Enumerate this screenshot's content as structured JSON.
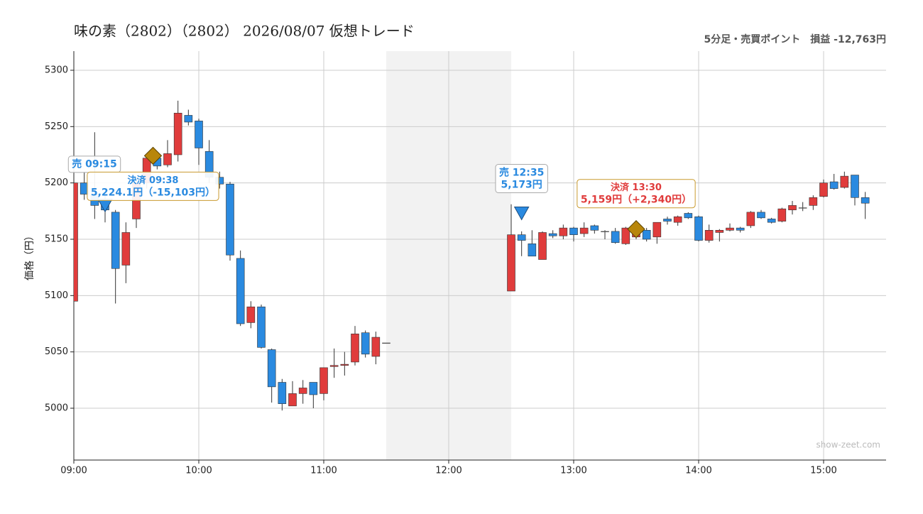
{
  "chart_data": {
    "type": "candlestick",
    "title": "味の素（2802）（2802） 2026/08/07 仮想トレード",
    "subtitle": "5分足・売買ポイント　損益 -12,763円",
    "ylabel": "価格（円）",
    "watermark": "show-zeet.com",
    "up_color": "#e03c3c",
    "down_color": "#2a8ae0",
    "x": [
      "09:00",
      "09:05",
      "09:10",
      "09:15",
      "09:20",
      "09:25",
      "09:30",
      "09:35",
      "09:40",
      "09:45",
      "09:50",
      "09:55",
      "10:00",
      "10:05",
      "10:10",
      "10:15",
      "10:20",
      "10:25",
      "10:30",
      "10:35",
      "10:40",
      "10:45",
      "10:50",
      "10:55",
      "11:00",
      "11:05",
      "11:10",
      "11:15",
      "11:20",
      "11:25",
      "11:30",
      "12:30",
      "12:35",
      "12:40",
      "12:45",
      "12:50",
      "12:55",
      "13:00",
      "13:05",
      "13:10",
      "13:15",
      "13:20",
      "13:25",
      "13:30",
      "13:35",
      "13:40",
      "13:45",
      "13:50",
      "13:55",
      "14:00",
      "14:05",
      "14:10",
      "14:15",
      "14:20",
      "14:25",
      "14:30",
      "14:35",
      "14:40",
      "14:45",
      "14:50",
      "14:55",
      "15:00",
      "15:05",
      "15:10",
      "15:15",
      "15:20"
    ],
    "open": [
      5095,
      5200,
      5190,
      5182,
      5174,
      5127,
      5168,
      5200,
      5222,
      5216,
      5225,
      5260,
      5255,
      5228,
      5205,
      5199,
      5133,
      5076,
      5090,
      5052,
      5023,
      5002,
      5013,
      5023,
      5013,
      5037,
      5038,
      5041,
      5067,
      5046,
      5058,
      5104,
      5154,
      5146,
      5132,
      5155,
      5153,
      5160,
      5155,
      5162,
      5157,
      5157,
      5146,
      5152,
      5158,
      5152,
      5168,
      5165,
      5173,
      5170,
      5149,
      5156,
      5158,
      5160,
      5162,
      5174,
      5168,
      5166,
      5176,
      5178,
      5180,
      5188,
      5201,
      5196,
      5207,
      5187
    ],
    "high": [
      5200,
      5210,
      5245,
      5190,
      5176,
      5165,
      5205,
      5225,
      5228,
      5238,
      5273,
      5265,
      5257,
      5238,
      5210,
      5201,
      5140,
      5095,
      5092,
      5053,
      5026,
      5024,
      5025,
      5023,
      5036,
      5053,
      5050,
      5073,
      5069,
      5068,
      5058,
      5181,
      5157,
      5158,
      5157,
      5158,
      5163,
      5161,
      5165,
      5163,
      5158,
      5160,
      5161,
      5160,
      5160,
      5165,
      5170,
      5171,
      5174,
      5171,
      5163,
      5159,
      5164,
      5161,
      5175,
      5176,
      5169,
      5178,
      5184,
      5183,
      5189,
      5203,
      5208,
      5210,
      5207,
      5192
    ],
    "low": [
      5095,
      5185,
      5168,
      5165,
      5093,
      5111,
      5160,
      5195,
      5212,
      5214,
      5219,
      5251,
      5216,
      5200,
      5195,
      5131,
      5073,
      5071,
      5053,
      5005,
      4998,
      5002,
      5004,
      5000,
      5007,
      5027,
      5029,
      5038,
      5045,
      5039,
      5058,
      5104,
      5135,
      5135,
      5132,
      5151,
      5150,
      5148,
      5152,
      5155,
      5150,
      5146,
      5145,
      5150,
      5148,
      5146,
      5163,
      5162,
      5168,
      5148,
      5147,
      5148,
      5157,
      5156,
      5160,
      5168,
      5164,
      5165,
      5172,
      5175,
      5176,
      5187,
      5194,
      5195,
      5180,
      5168
    ],
    "close": [
      5200,
      5190,
      5180,
      5176,
      5124,
      5156,
      5200,
      5222,
      5215,
      5226,
      5262,
      5254,
      5231,
      5205,
      5199,
      5136,
      5075,
      5090,
      5054,
      5019,
      5004,
      5013,
      5018,
      5012,
      5036,
      5038,
      5039,
      5066,
      5048,
      5063,
      5058,
      5154,
      5149,
      5135,
      5156,
      5153,
      5160,
      5154,
      5160,
      5158,
      5157,
      5147,
      5160,
      5158,
      5150,
      5165,
      5166,
      5170,
      5169,
      5149,
      5158,
      5158,
      5160,
      5158,
      5174,
      5169,
      5165,
      5177,
      5180,
      5178,
      5187,
      5200,
      5195,
      5206,
      5187,
      5182
    ],
    "xlim": [
      "09:00",
      "15:30"
    ],
    "xticks": [
      "09:00",
      "10:00",
      "11:00",
      "12:00",
      "13:00",
      "14:00",
      "15:00"
    ],
    "ylim": [
      4954,
      5317
    ],
    "yticks": [
      5000,
      5050,
      5100,
      5150,
      5200,
      5250,
      5300
    ],
    "grid": true,
    "break": [
      "11:30",
      "12:30"
    ],
    "annotations": [
      {
        "marker": "sell",
        "time": "09:15",
        "price": 5180,
        "title": "売 09:15",
        "color": "#2a8ae0"
      },
      {
        "marker": "exit",
        "time": "09:38",
        "price": 5224.1,
        "title": "決済 09:38",
        "text": "5,224.1円（-15,103円）",
        "color": "#2a8ae0"
      },
      {
        "marker": "sell",
        "time": "12:35",
        "price": 5173,
        "title": "売 12:35",
        "text": "5,173円",
        "color": "#2a8ae0"
      },
      {
        "marker": "exit",
        "time": "13:30",
        "price": 5159,
        "title": "決済 13:30",
        "text": "5,159円（+2,340円）",
        "color": "#e03c3c"
      }
    ]
  }
}
